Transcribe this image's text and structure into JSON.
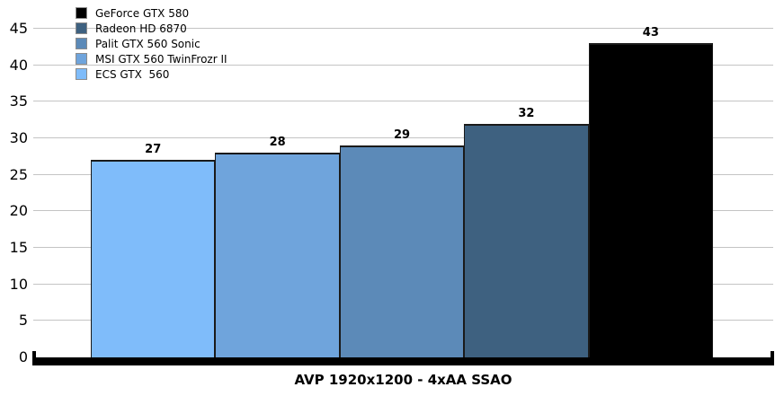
{
  "chart_data": {
    "type": "bar",
    "title": "",
    "xlabel": "AVP 1920x1200 - 4xAA SSAO",
    "ylabel": "",
    "ylim": [
      0,
      45
    ],
    "ytick_step": 5,
    "grid": true,
    "legend_position": "top-left",
    "categories": [
      "ECS GTX  560",
      "MSI GTX 560 TwinFrozr II",
      "Palit GTX 560 Sonic",
      "Radeon HD 6870",
      "GeForce GTX 580"
    ],
    "series": [
      {
        "name": "ECS GTX  560",
        "value": 27,
        "color": "#7fbcfa"
      },
      {
        "name": "MSI GTX 560 TwinFrozr II",
        "value": 28,
        "color": "#6fa4dc"
      },
      {
        "name": "Palit GTX 560 Sonic",
        "value": 29,
        "color": "#5c8ab8"
      },
      {
        "name": "Radeon HD 6870",
        "value": 32,
        "color": "#3e6180"
      },
      {
        "name": "GeForce GTX 580",
        "value": 43,
        "color": "#000000"
      }
    ],
    "legend_order": [
      "GeForce GTX 580",
      "Radeon HD 6870",
      "Palit GTX 560 Sonic",
      "MSI GTX 560 TwinFrozr II",
      "ECS GTX  560"
    ]
  },
  "colors": {
    "grid": "#c4c4c4",
    "axis": "#000000",
    "bar_border": "#1a1a1a",
    "text": "#000000",
    "background": "#ffffff"
  }
}
